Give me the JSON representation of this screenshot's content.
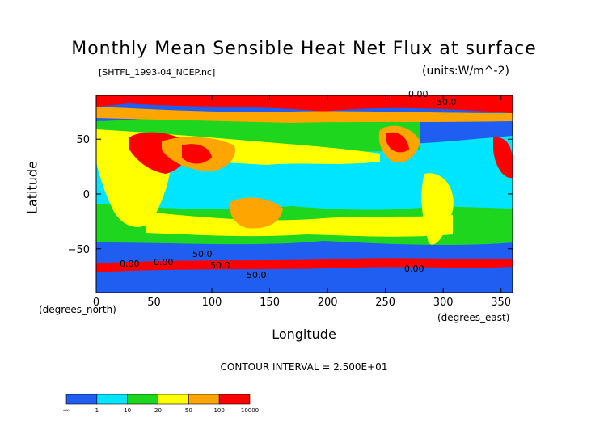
{
  "chart_data": {
    "type": "heatmap",
    "title": "Monthly Mean Sensible Heat Net Flux at surface",
    "file_label": "[SHTFL_1993-04_NCEP.nc]",
    "units_label": "(units:W/m^-2)",
    "xlabel": "Longitude",
    "ylabel": "Latitude",
    "x_unit_label": "(degrees_east)",
    "y_unit_label": "(degrees_north)",
    "xlim": [
      0,
      360
    ],
    "ylim": [
      -90,
      90
    ],
    "x_ticks": [
      0,
      50,
      100,
      150,
      200,
      250,
      300,
      350
    ],
    "y_ticks": [
      50,
      0,
      -50
    ],
    "contour_interval": "CONTOUR INTERVAL = 2.500E+01",
    "contour_labels": [
      "0.00",
      "0.00",
      "50.0",
      "50.0",
      "50.0",
      "0.00",
      "0.00",
      "50.0"
    ],
    "legend": {
      "position": "bottom-left",
      "labels": [
        "-∞",
        "1",
        "10",
        "20",
        "50",
        "100",
        "10000"
      ],
      "colors": [
        "#1f5ef0",
        "#00e5ff",
        "#1fd61f",
        "#ffff00",
        "#ffa500",
        "#ff0000"
      ]
    }
  }
}
